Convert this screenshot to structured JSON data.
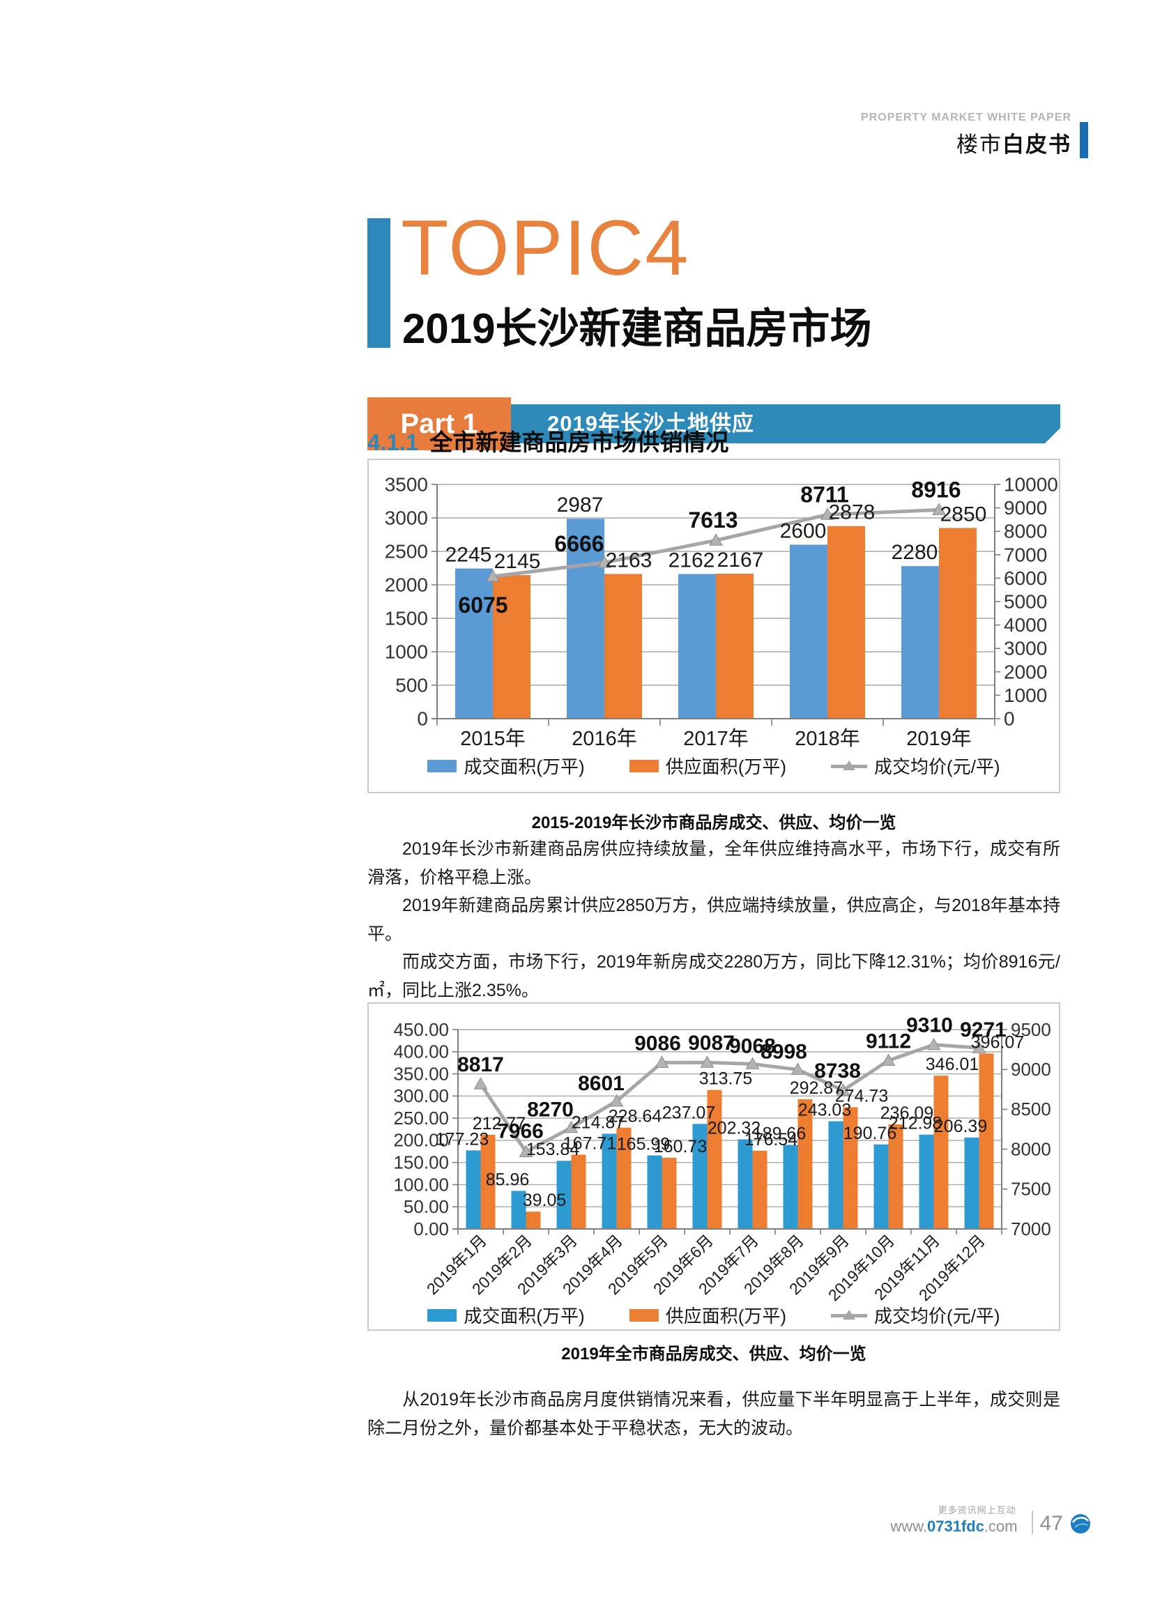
{
  "header": {
    "en_title": "PROPERTY MARKET WHITE PAPER",
    "zh_title_regular": "楼市",
    "zh_title_bold": "白皮书"
  },
  "topic": {
    "eyebrow": "TOPIC4",
    "title": "2019长沙新建商品房市场"
  },
  "part_banner": {
    "part_label": "Part 1",
    "title": "2019年长沙土地供应"
  },
  "section_heading": {
    "number": "4.1.1",
    "title": "全市新建商品房市场供销情况"
  },
  "captions": {
    "chart1": "2015-2019年长沙市商品房成交、供应、均价一览",
    "chart2": "2019年全市商品房成交、供应、均价一览"
  },
  "paragraphs": {
    "p1": "2019年长沙市新建商品房供应持续放量，全年供应维持高水平，市场下行，成交有所滑落，价格平稳上涨。",
    "p2": "2019年新建商品房累计供应2850万方，供应端持续放量，供应高企，与2018年基本持平。",
    "p3": "而成交方面，市场下行，2019年新房成交2280万方，同比下降12.31%；均价8916元/㎡，同比上涨2.35%。",
    "p4": "从2019年长沙市商品房月度供销情况来看，供应量下半年明显高于上半年，成交则是除二月份之外，量价都基本处于平稳状态，无大的波动。"
  },
  "footer": {
    "tagline": "更多资讯网上互动",
    "url_prefix": "www.",
    "url_highlight": "0731fdc",
    "url_suffix": ".com",
    "page_number": "47"
  },
  "colors": {
    "header_bar_blue": "#1a6db2",
    "topic_orange": "#e8823f",
    "banner_blue": "#2d8ab9",
    "accent_orange": "#e87c3c",
    "section_blue": "#2e87bb",
    "bar_blue_chart1": "#5b9bd5",
    "bar_blue_chart2": "#2e9ad2",
    "bar_orange": "#ed7d31",
    "line_gray": "#a6a6a6",
    "link_blue": "#1f7fc0"
  },
  "chart_data": [
    {
      "type": "bar",
      "subtype": "bar+line-dual-axis",
      "title": "2015-2019年长沙市商品房成交、供应、均价一览",
      "categories": [
        "2015年",
        "2016年",
        "2017年",
        "2018年",
        "2019年"
      ],
      "series": [
        {
          "name": "成交面积(万平)",
          "kind": "bar",
          "axis": "left",
          "color": "#5b9bd5",
          "values": [
            2245,
            2987,
            2162,
            2600,
            2280
          ]
        },
        {
          "name": "供应面积(万平)",
          "kind": "bar",
          "axis": "left",
          "color": "#ed7d31",
          "values": [
            2145,
            2163,
            2167,
            2878,
            2850
          ]
        },
        {
          "name": "成交均价(元/平)",
          "kind": "line",
          "axis": "right",
          "color": "#a6a6a6",
          "values": [
            6075,
            6666,
            7613,
            8711,
            8916
          ]
        }
      ],
      "y_left": {
        "min": 0,
        "max": 3500,
        "step": 500,
        "decimals": 0
      },
      "y_right": {
        "min": 0,
        "max": 10000,
        "step": 1000,
        "decimals": 0
      },
      "value_decimals": 0,
      "grid": true,
      "legend_position": "bottom",
      "x_label_rotation": 0
    },
    {
      "type": "bar",
      "subtype": "bar+line-dual-axis",
      "title": "2019年全市商品房成交、供应、均价一览",
      "categories": [
        "2019年1月",
        "2019年2月",
        "2019年3月",
        "2019年4月",
        "2019年5月",
        "2019年6月",
        "2019年7月",
        "2019年8月",
        "2019年9月",
        "2019年10月",
        "2019年11月",
        "2019年12月"
      ],
      "series": [
        {
          "name": "成交面积(万平)",
          "kind": "bar",
          "axis": "left",
          "color": "#2e9ad2",
          "values": [
            177.23,
            85.96,
            153.84,
            214.87,
            165.99,
            237.07,
            202.32,
            189.66,
            243.03,
            190.76,
            212.98,
            206.39
          ]
        },
        {
          "name": "供应面积(万平)",
          "kind": "bar",
          "axis": "left",
          "color": "#ed7d31",
          "values": [
            212.77,
            39.05,
            167.71,
            228.64,
            160.73,
            313.75,
            176.54,
            292.87,
            274.73,
            236.09,
            346.01,
            396.07
          ]
        },
        {
          "name": "成交均价(元/平)",
          "kind": "line",
          "axis": "right",
          "color": "#a6a6a6",
          "values": [
            8817,
            7966,
            8270,
            8601,
            9086,
            9087,
            9068,
            8998,
            8738,
            9112,
            9310,
            9271
          ]
        }
      ],
      "y_left": {
        "min": 0,
        "max": 450,
        "step": 50,
        "decimals": 2
      },
      "y_right": {
        "min": 7000,
        "max": 9500,
        "step": 500,
        "decimals": 0
      },
      "value_decimals": 2,
      "grid": true,
      "legend_position": "bottom",
      "x_label_rotation": 45
    }
  ]
}
